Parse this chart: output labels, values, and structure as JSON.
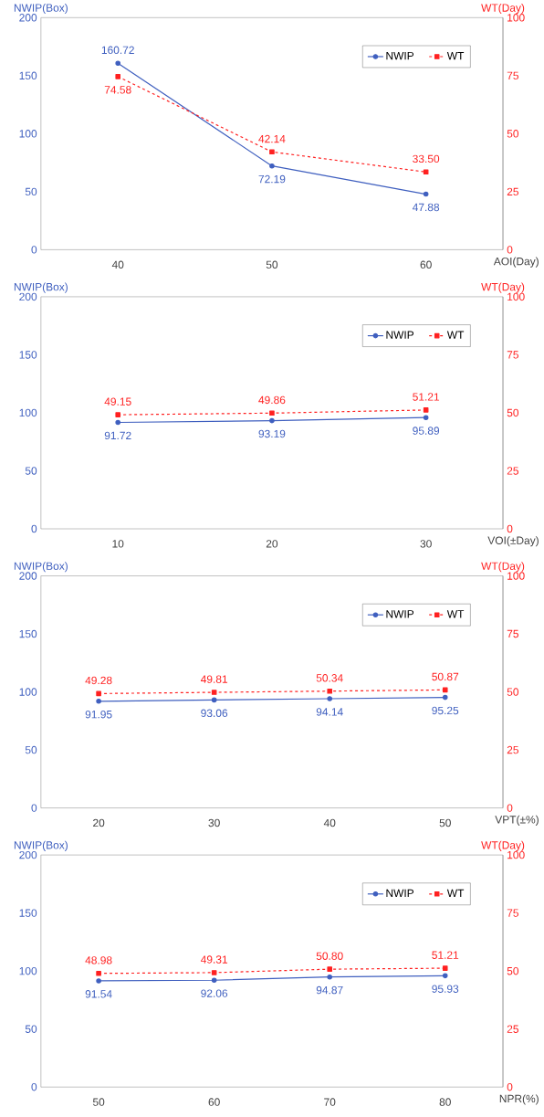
{
  "chart_data": [
    {
      "type": "line",
      "categories": [
        "40",
        "50",
        "60"
      ],
      "xlabel": "AOI(Day)",
      "ylabel": "NWIP(Box)",
      "y2label": "WT(Day)",
      "ylim": [
        0,
        200
      ],
      "yticks": [
        0,
        50,
        100,
        150,
        200
      ],
      "y2lim": [
        0,
        100
      ],
      "y2ticks": [
        0,
        25,
        50,
        75,
        100
      ],
      "legend": "top right",
      "series": [
        {
          "name": "NWIP",
          "color": "#3f5fbf",
          "marker": "circle",
          "line_style": "solid",
          "values": [
            160.72,
            72.19,
            47.88
          ],
          "value_labels": [
            "160.72",
            "72.19",
            "47.88"
          ]
        },
        {
          "name": "WT",
          "color": "#ff2020",
          "marker": "square",
          "line_style": "dashed",
          "axis": "y2",
          "values": [
            74.58,
            42.14,
            33.5
          ],
          "value_labels": [
            "74.58",
            "42.14",
            "33.50"
          ]
        }
      ]
    },
    {
      "type": "line",
      "categories": [
        "10",
        "20",
        "30"
      ],
      "xlabel": "VOI(±Day)",
      "ylabel": "NWIP(Box)",
      "y2label": "WT(Day)",
      "ylim": [
        0,
        200
      ],
      "yticks": [
        0,
        50,
        100,
        150,
        200
      ],
      "y2lim": [
        0,
        100
      ],
      "y2ticks": [
        0,
        25,
        50,
        75,
        100
      ],
      "legend": "top right",
      "series": [
        {
          "name": "NWIP",
          "color": "#3f5fbf",
          "marker": "circle",
          "line_style": "solid",
          "values": [
            91.72,
            93.19,
            95.89
          ],
          "value_labels": [
            "91.72",
            "93.19",
            "95.89"
          ]
        },
        {
          "name": "WT",
          "color": "#ff2020",
          "marker": "square",
          "line_style": "dashed",
          "axis": "y2",
          "values": [
            49.15,
            49.86,
            51.21
          ],
          "value_labels": [
            "49.15",
            "49.86",
            "51.21"
          ]
        }
      ]
    },
    {
      "type": "line",
      "categories": [
        "20",
        "30",
        "40",
        "50"
      ],
      "xlabel": "VPT(±%)",
      "ylabel": "NWIP(Box)",
      "y2label": "WT(Day)",
      "ylim": [
        0,
        200
      ],
      "yticks": [
        0,
        50,
        100,
        150,
        200
      ],
      "y2lim": [
        0,
        100
      ],
      "y2ticks": [
        0,
        25,
        50,
        75,
        100
      ],
      "legend": "top right",
      "series": [
        {
          "name": "NWIP",
          "color": "#3f5fbf",
          "marker": "circle",
          "line_style": "solid",
          "values": [
            91.95,
            93.06,
            94.14,
            95.25
          ],
          "value_labels": [
            "91.95",
            "93.06",
            "94.14",
            "95.25"
          ]
        },
        {
          "name": "WT",
          "color": "#ff2020",
          "marker": "square",
          "line_style": "dashed",
          "axis": "y2",
          "values": [
            49.28,
            49.81,
            50.34,
            50.87
          ],
          "value_labels": [
            "49.28",
            "49.81",
            "50.34",
            "50.87"
          ]
        }
      ]
    },
    {
      "type": "line",
      "categories": [
        "50",
        "60",
        "70",
        "80"
      ],
      "xlabel": "NPR(%)",
      "ylabel": "NWIP(Box)",
      "y2label": "WT(Day)",
      "ylim": [
        0,
        200
      ],
      "yticks": [
        0,
        50,
        100,
        150,
        200
      ],
      "y2lim": [
        0,
        100
      ],
      "y2ticks": [
        0,
        25,
        50,
        75,
        100
      ],
      "legend": "top right",
      "series": [
        {
          "name": "NWIP",
          "color": "#3f5fbf",
          "marker": "circle",
          "line_style": "solid",
          "values": [
            91.54,
            92.06,
            94.87,
            95.93
          ],
          "value_labels": [
            "91.54",
            "92.06",
            "94.87",
            "95.93"
          ]
        },
        {
          "name": "WT",
          "color": "#ff2020",
          "marker": "square",
          "line_style": "dashed",
          "axis": "y2",
          "values": [
            48.98,
            49.31,
            50.8,
            51.21
          ],
          "value_labels": [
            "48.98",
            "49.31",
            "50.80",
            "51.21"
          ]
        }
      ]
    }
  ]
}
